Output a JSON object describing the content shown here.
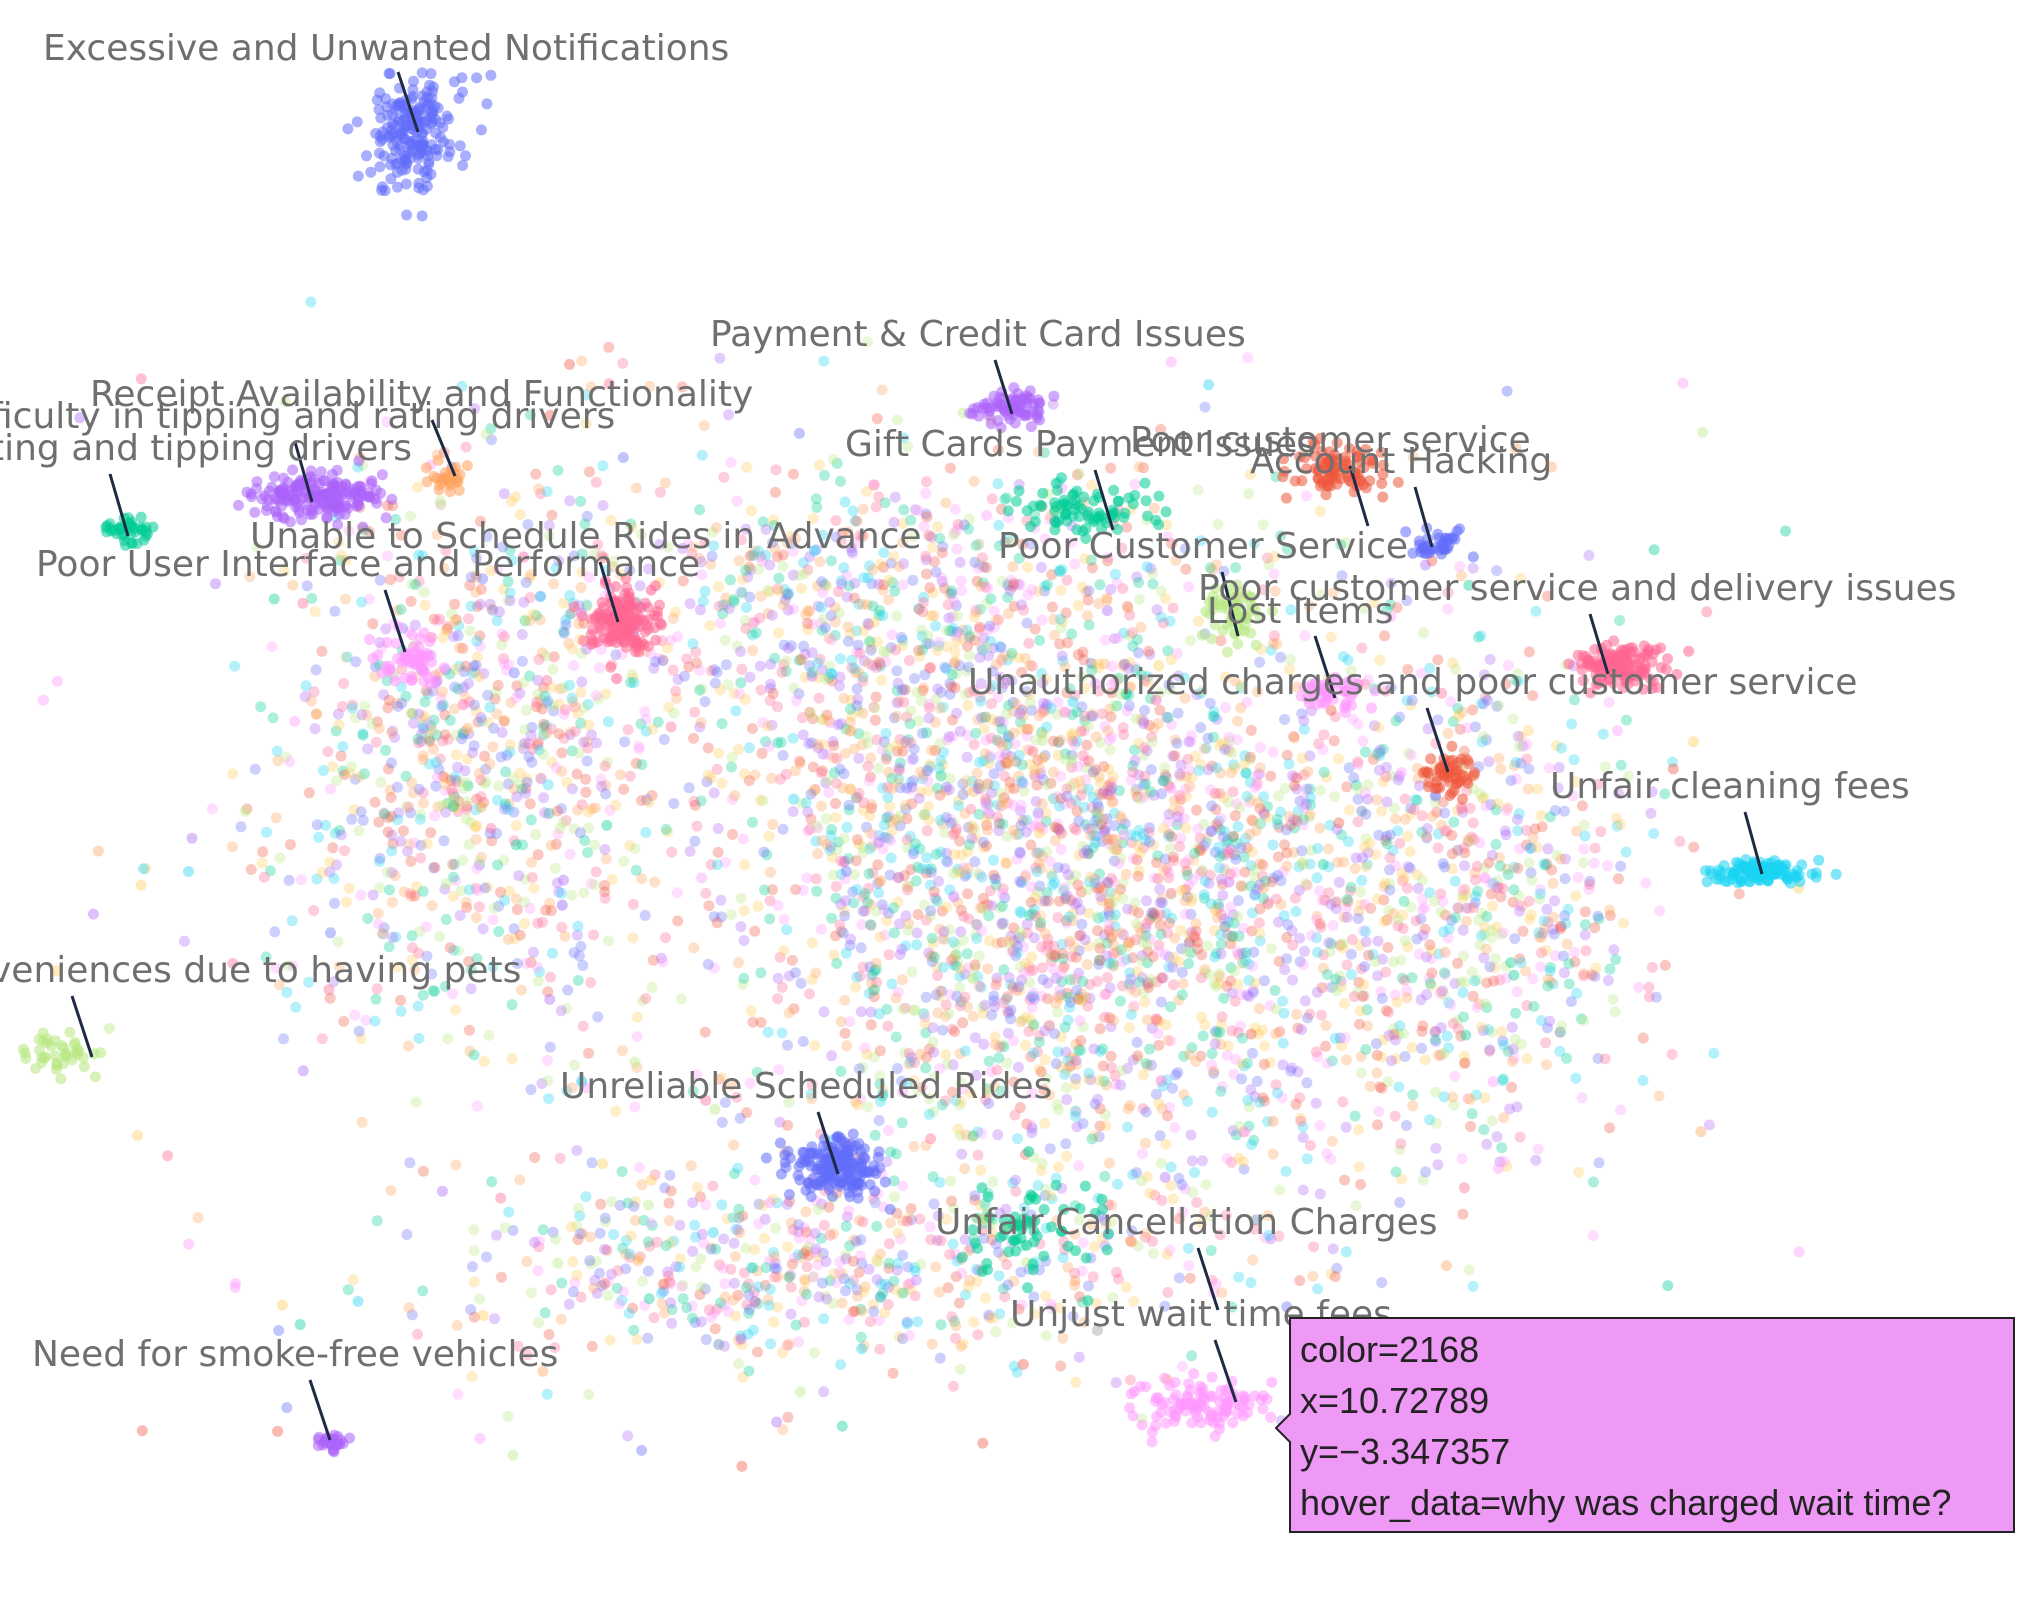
{
  "chart_data": {
    "type": "scatter",
    "title": "",
    "xlabel": "",
    "ylabel": "",
    "grid": false,
    "legend": "none",
    "palette": [
      "#636efa",
      "#ef553b",
      "#00cc96",
      "#ab63fa",
      "#ffa15a",
      "#19d3f3",
      "#ff6692",
      "#b6e880",
      "#ff97ff",
      "#fecb52"
    ],
    "clusters": [
      {
        "label": "Excessive and Unwanted Notifications",
        "color": "#636efa"
      },
      {
        "label": "Payment & Credit Card Issues",
        "color": "#ab63fa"
      },
      {
        "label": "Receipt Availability and Functionality",
        "color": "#ffa15a"
      },
      {
        "label": "ficulty in tipping and rating drivers",
        "color": "#ab63fa"
      },
      {
        "label": "ting and tipping drivers",
        "color": "#00cc96"
      },
      {
        "label": "Gift Cards Payment Issues",
        "color": "#00cc96"
      },
      {
        "label": "Poor customer service",
        "color": "#ef553b"
      },
      {
        "label": "Account Hacking",
        "color": "#636efa"
      },
      {
        "label": "Unable to Schedule Rides in Advance",
        "color": "#ff6692"
      },
      {
        "label": "Poor User Interface and Performance",
        "color": "#ff97ff"
      },
      {
        "label": "Poor Customer Service",
        "color": "#b6e880"
      },
      {
        "label": "Poor customer service and delivery issues",
        "color": "#ff6692"
      },
      {
        "label": "Lost Items",
        "color": "#ff97ff"
      },
      {
        "label": "Unauthorized charges and poor customer service",
        "color": "#ef553b"
      },
      {
        "label": "Unfair cleaning fees",
        "color": "#19d3f3"
      },
      {
        "label": "veniences due to having pets",
        "color": "#b6e880"
      },
      {
        "label": "Unreliable Scheduled Rides",
        "color": "#636efa"
      },
      {
        "label": "Unfair Cancellation Charges",
        "color": "#00cc96"
      },
      {
        "label": "Unjust wait time fees",
        "color": "#ff97ff"
      },
      {
        "label": "Need for smoke-free vehicles",
        "color": "#ab63fa"
      }
    ],
    "hover": {
      "color": "2168",
      "x": "10.72789",
      "y": "−3.347357",
      "hover_data": "why was charged wait time?"
    }
  },
  "tooltip": {
    "line_color": "color=2168",
    "line_x": "x=10.72789",
    "line_y": "y=−3.347357",
    "line_hover": "hover_data=why was charged wait time?",
    "background": "#ef99f6"
  }
}
